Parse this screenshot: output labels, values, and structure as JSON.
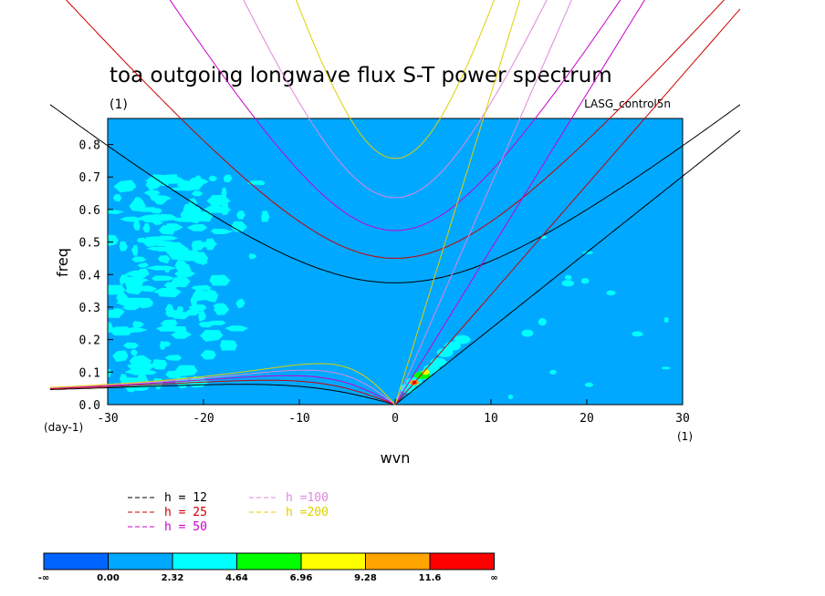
{
  "chart_data": {
    "type": "heatmap",
    "title": "toa outgoing longwave flux S-T power spectrum",
    "subtitle": "(1)",
    "case_label": "LASG_control5n",
    "xlabel": "wvn",
    "ylabel": "freq",
    "x_unit_label": "(1)",
    "y_unit_label": "(day-1)",
    "xlim": [
      -30,
      30
    ],
    "ylim": [
      0,
      0.88
    ],
    "xticks": [
      "-30",
      "-20",
      "-10",
      "0",
      "10",
      "20",
      "30"
    ],
    "yticks": [
      "0.0",
      "0.1",
      "0.2",
      "0.3",
      "0.4",
      "0.5",
      "0.6",
      "0.7",
      "0.8"
    ],
    "background_color": "#00a8ff",
    "contour_levels": [
      "-∞",
      "0.00",
      "2.32",
      "4.64",
      "6.96",
      "9.28",
      "11.6",
      "∞"
    ],
    "colorbar_colors": [
      "#0064ff",
      "#00a8ff",
      "#00ffff",
      "#00ff00",
      "#ffff00",
      "#ffa500",
      "#ff0000"
    ],
    "equivalent_depths": [
      {
        "label": "h = 12",
        "h": 12,
        "color": "#000000"
      },
      {
        "label": "h = 25",
        "h": 25,
        "color": "#cc0000"
      },
      {
        "label": "h = 50",
        "h": 50,
        "color": "#cc00cc"
      },
      {
        "label": "h =100",
        "h": 100,
        "color": "#dd88dd"
      },
      {
        "label": "h =200",
        "h": 200,
        "color": "#e0d000"
      }
    ],
    "features": [
      {
        "name": "low-frequency cyan patches",
        "x_range": [
          -30,
          -13
        ],
        "y_range": [
          0.05,
          0.7
        ]
      },
      {
        "name": "kelvin-wave peak",
        "x_range": [
          1,
          8
        ],
        "y_range": [
          0.05,
          0.2
        ],
        "peak_x": 2,
        "peak_y": 0.07
      }
    ]
  }
}
